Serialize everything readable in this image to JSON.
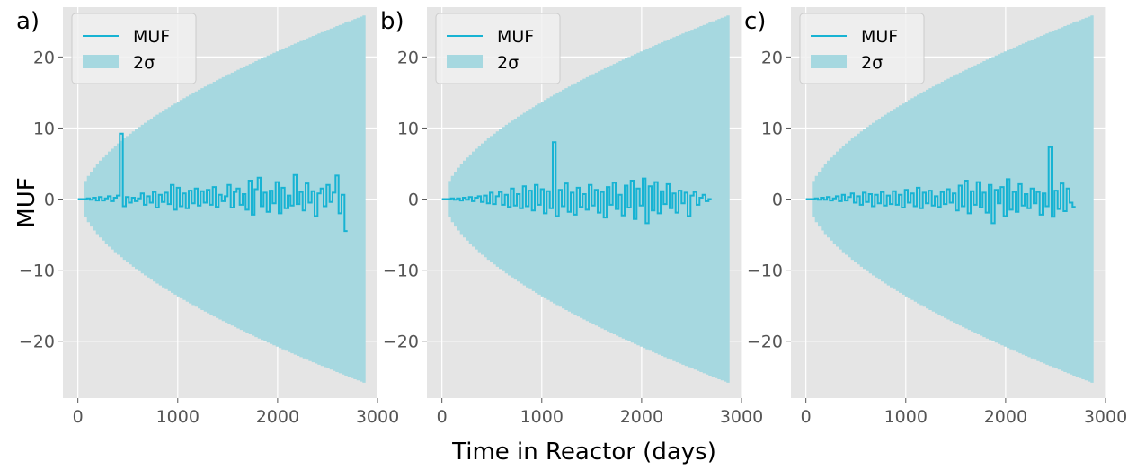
{
  "colors": {
    "line": "#17b3d3",
    "band": "#a6d8e0",
    "background": "#e5e5e5",
    "grid": "#ffffff",
    "tick_text": "#555555"
  },
  "chart_data": [
    {
      "type": "line",
      "panel_label": "a)",
      "xlabel": "",
      "ylabel": "MUF",
      "xlim": [
        -150,
        3000
      ],
      "ylim": [
        -28,
        27
      ],
      "xticks": [
        0,
        1000,
        2000,
        3000
      ],
      "xtick_labels": [
        "0",
        "1000",
        "2000",
        "3000"
      ],
      "yticks": [
        -20,
        -10,
        0,
        10,
        20
      ],
      "ytick_labels": [
        "−20",
        "−10",
        "0",
        "10",
        "20"
      ],
      "grid": true,
      "legend": {
        "position": "top-left",
        "entries": [
          "MUF",
          "2σ"
        ]
      },
      "band": {
        "name": "2σ",
        "x_start": 60,
        "x_end": 2880,
        "half_width_at_end": 26,
        "exponent": 0.6,
        "steps": 1.0
      },
      "series": [
        {
          "name": "MUF",
          "drawstyle": "steps",
          "x_start": 0,
          "x_step": 30,
          "values": [
            0,
            0,
            0,
            0.1,
            -0.1,
            0.2,
            -0.2,
            0.3,
            -0.2,
            0.1,
            0.4,
            -0.3,
            0.2,
            0.5,
            9.2,
            -1.0,
            0.3,
            -0.5,
            0.2,
            -0.3,
            0.1,
            0.8,
            -0.8,
            0.4,
            -0.5,
            1.0,
            -1.2,
            0.6,
            -0.4,
            0.9,
            -0.7,
            2.0,
            -1.5,
            1.6,
            -1.0,
            0.8,
            -1.3,
            1.2,
            -0.6,
            1.5,
            -0.9,
            1.1,
            -0.5,
            1.3,
            -0.8,
            1.7,
            -1.1,
            0.6,
            -0.3,
            0.4,
            2.0,
            -1.2,
            1.0,
            1.5,
            -0.8,
            0.7,
            -1.5,
            2.6,
            -2.2,
            1.4,
            3.0,
            -1.0,
            0.9,
            -1.8,
            1.2,
            -0.6,
            2.4,
            -2.0,
            1.6,
            -1.3,
            0.5,
            -0.9,
            3.4,
            -0.7,
            1.0,
            -1.6,
            2.2,
            -0.5,
            1.1,
            -2.4,
            0.8,
            1.5,
            -1.0,
            2.0,
            -0.4,
            0.9,
            3.3,
            -2.0,
            0.6,
            -4.5
          ]
        }
      ]
    },
    {
      "type": "line",
      "panel_label": "b)",
      "xlabel": "Time in Reactor (days)",
      "ylabel": "",
      "xlim": [
        -150,
        3000
      ],
      "ylim": [
        -28,
        27
      ],
      "xticks": [
        0,
        1000,
        2000,
        3000
      ],
      "xtick_labels": [
        "0",
        "1000",
        "2000",
        "3000"
      ],
      "yticks": [
        -20,
        -10,
        0,
        10,
        20
      ],
      "ytick_labels": [
        "−20",
        "−10",
        "0",
        "10",
        "20"
      ],
      "grid": true,
      "legend": {
        "position": "top-left",
        "entries": [
          "MUF",
          "2σ"
        ]
      },
      "band": {
        "name": "2σ",
        "x_start": 60,
        "x_end": 2880,
        "half_width_at_end": 26,
        "exponent": 0.6,
        "steps": 1.0
      },
      "series": [
        {
          "name": "MUF",
          "drawstyle": "steps",
          "x_start": 0,
          "x_step": 30,
          "values": [
            0,
            0,
            0,
            0.1,
            -0.1,
            0.1,
            -0.2,
            0.2,
            -0.1,
            0.3,
            -0.3,
            0.2,
            0.4,
            -0.4,
            0.5,
            -0.6,
            0.9,
            -0.7,
            0.4,
            1.0,
            -0.8,
            0.6,
            -1.1,
            1.5,
            -0.9,
            0.7,
            -1.3,
            1.8,
            -1.0,
            1.2,
            -1.6,
            2.0,
            -0.8,
            1.4,
            -2.0,
            1.1,
            -1.3,
            8.0,
            -2.4,
            1.3,
            -1.0,
            2.2,
            -1.8,
            0.9,
            -2.2,
            1.6,
            -1.1,
            0.7,
            -1.5,
            2.0,
            -0.9,
            1.3,
            -1.9,
            1.0,
            -2.6,
            1.7,
            -0.8,
            2.3,
            -1.4,
            0.6,
            -2.3,
            1.9,
            -1.2,
            2.6,
            -2.8,
            1.5,
            -0.9,
            2.9,
            -3.4,
            1.8,
            -1.6,
            2.4,
            -2.0,
            1.1,
            -0.7,
            2.1,
            -1.3,
            0.8,
            -1.9,
            1.2,
            -0.6,
            0.9,
            -2.4,
            0.5,
            1.0,
            -0.8,
            0.2,
            0.6,
            -0.3,
            0.0
          ]
        }
      ]
    },
    {
      "type": "line",
      "panel_label": "c)",
      "xlabel": "",
      "ylabel": "",
      "xlim": [
        -150,
        3000
      ],
      "ylim": [
        -28,
        27
      ],
      "xticks": [
        0,
        1000,
        2000,
        3000
      ],
      "xtick_labels": [
        "0",
        "1000",
        "2000",
        "3000"
      ],
      "yticks": [
        -20,
        -10,
        0,
        10,
        20
      ],
      "ytick_labels": [
        "−20",
        "−10",
        "0",
        "10",
        "20"
      ],
      "grid": true,
      "legend": {
        "position": "top-left",
        "entries": [
          "MUF",
          "2σ"
        ]
      },
      "band": {
        "name": "2σ",
        "x_start": 60,
        "x_end": 2880,
        "half_width_at_end": 26,
        "exponent": 0.6,
        "steps": 1.0
      },
      "series": [
        {
          "name": "MUF",
          "drawstyle": "steps",
          "x_start": 0,
          "x_step": 30,
          "values": [
            0,
            0,
            0,
            0.1,
            -0.1,
            0.2,
            -0.1,
            0.3,
            -0.2,
            0.1,
            0.4,
            -0.3,
            0.6,
            -0.2,
            0.3,
            0.8,
            -0.5,
            0.4,
            -0.8,
            0.9,
            -0.4,
            0.7,
            -1.0,
            0.6,
            -0.6,
            1.0,
            -0.9,
            0.5,
            -0.7,
            1.1,
            -0.8,
            0.6,
            -1.2,
            1.3,
            -0.5,
            0.8,
            -1.0,
            1.6,
            -1.3,
            0.9,
            -0.6,
            1.2,
            -0.9,
            0.4,
            -1.1,
            1.0,
            -0.7,
            1.4,
            -0.5,
            0.8,
            -1.6,
            1.9,
            -1.0,
            2.6,
            -2.0,
            1.1,
            -0.8,
            2.4,
            -1.2,
            0.9,
            -1.9,
            2.0,
            -3.4,
            1.3,
            -0.6,
            1.7,
            -2.4,
            2.8,
            -1.5,
            1.0,
            -1.8,
            2.1,
            -0.9,
            0.7,
            -1.3,
            1.5,
            -0.6,
            1.0,
            -2.2,
            0.8,
            -1.0,
            7.3,
            -2.5,
            1.2,
            -1.4,
            2.2,
            -1.7,
            1.5,
            -0.5,
            -1.1
          ]
        }
      ]
    }
  ]
}
